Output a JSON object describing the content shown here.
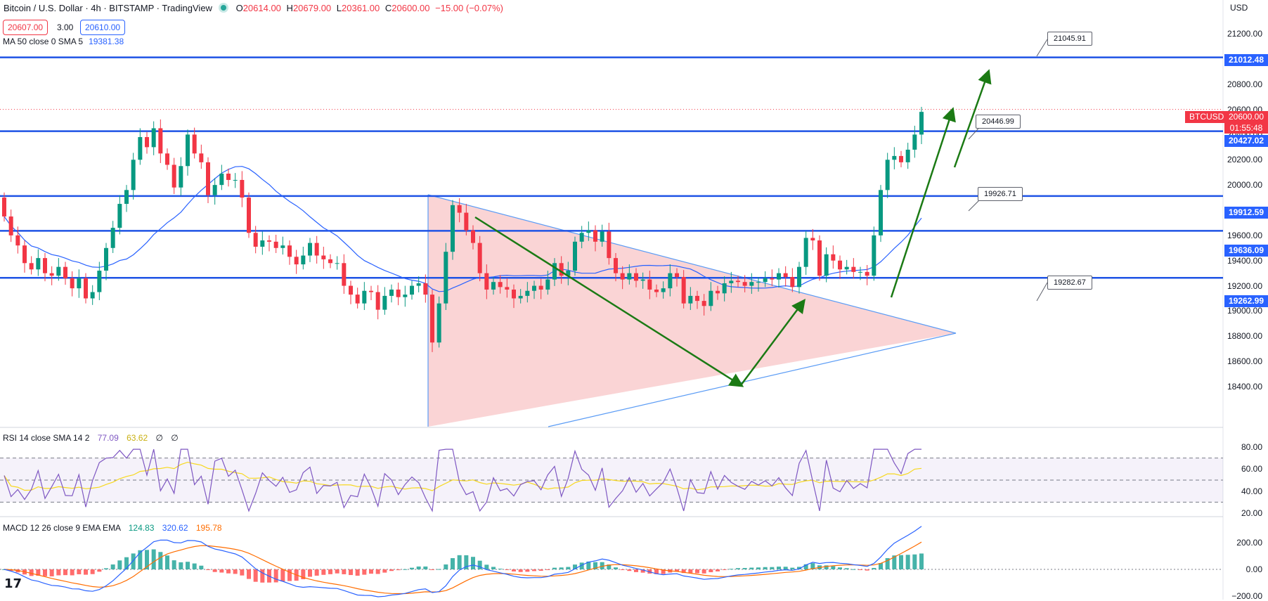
{
  "header": {
    "title": "Bitcoin / U.S. Dollar · 4h · BITSTAMP · TradingView",
    "ohlc": [
      {
        "label": "O",
        "value": "20614.00"
      },
      {
        "label": "H",
        "value": "20679.00"
      },
      {
        "label": "L",
        "value": "20361.00"
      },
      {
        "label": "C",
        "value": "20600.00"
      },
      {
        "label": "",
        "value": "−15.00 (−0.07%)"
      }
    ],
    "bid": "20607.00",
    "spread": "3.00",
    "ask": "20610.00"
  },
  "indicators": {
    "ma": {
      "label": "MA 50 close 0 SMA 5",
      "value": "19381.38",
      "color": "#2962ff"
    },
    "rsi": {
      "label": "RSI 14 close SMA 14 2",
      "values": [
        "77.09",
        "63.62",
        "∅",
        "∅"
      ],
      "colors": [
        "#7e57c2",
        "#f7d81d",
        "#131722",
        "#131722"
      ]
    },
    "macd": {
      "label": "MACD 12 26 close 9 EMA EMA",
      "values": [
        "124.83",
        "320.62",
        "195.78"
      ],
      "colors": [
        "#089981",
        "#2962ff",
        "#ff6d00"
      ]
    }
  },
  "price_axis": {
    "currency": "USD",
    "main_ticks": [
      "21200.00",
      "21000.00",
      "20800.00",
      "20600.00",
      "20400.00",
      "20200.00",
      "20000.00",
      "19800.00",
      "19600.00",
      "19400.00",
      "19200.00",
      "19000.00",
      "18800.00",
      "18600.00",
      "18400.00"
    ],
    "rsi_ticks": [
      "80.00",
      "60.00",
      "40.00",
      "20.00"
    ],
    "macd_ticks": [
      "200.00",
      "0.00",
      "−200.00"
    ],
    "symbol": "BTCUSD",
    "last_price": "20600.00",
    "countdown": "01:55:48"
  },
  "levels": [
    {
      "value": "21012.48",
      "callout": "21045.91"
    },
    {
      "value": "20427.02",
      "callout": "20446.99"
    },
    {
      "value": "19912.59",
      "callout": "19926.71"
    },
    {
      "value": "19636.09",
      "callout": ""
    },
    {
      "value": "19262.99",
      "callout": "19282.67"
    }
  ],
  "colors": {
    "up": "#089981",
    "down": "#f23645",
    "level_line": "#1e53e5",
    "arrow": "#1b7a14",
    "triangle_fill": "#f8c5c7",
    "triangle_stroke": "#5b9cf5"
  },
  "icons": {
    "logo": "tradingview-logo-icon",
    "status": "live-dot-icon"
  },
  "logo_text": "17"
}
